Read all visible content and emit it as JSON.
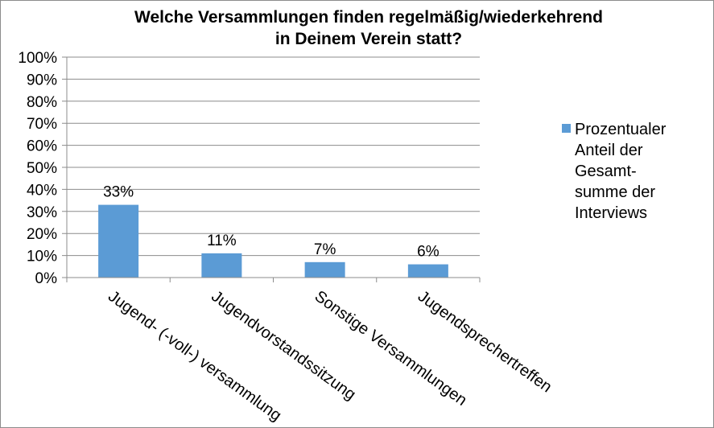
{
  "chart_data": {
    "type": "bar",
    "title": [
      "Welche Versammlungen finden regelmäßig/wiederkehrend",
      "in Deinem Verein statt?"
    ],
    "categories": [
      "Jugend- (-voll-) versammlung",
      "Jugendvorstandssitzung",
      "Sonstige Versammlungen",
      "Jugendsprechertreffen"
    ],
    "series": [
      {
        "name": [
          "Prozentualer",
          "Anteil der",
          "Gesamt-",
          "summe der",
          "Interviews"
        ],
        "values": [
          33,
          11,
          7,
          6
        ],
        "color": "#5b9bd5"
      }
    ],
    "data_labels": [
      "33%",
      "11%",
      "7%",
      "6%"
    ],
    "yticks": [
      "0%",
      "10%",
      "20%",
      "30%",
      "40%",
      "50%",
      "60%",
      "70%",
      "80%",
      "90%",
      "100%"
    ],
    "ylim": [
      0,
      100
    ],
    "grid": true,
    "legend_position": "right",
    "gridline_color": "#8c8c8c"
  }
}
